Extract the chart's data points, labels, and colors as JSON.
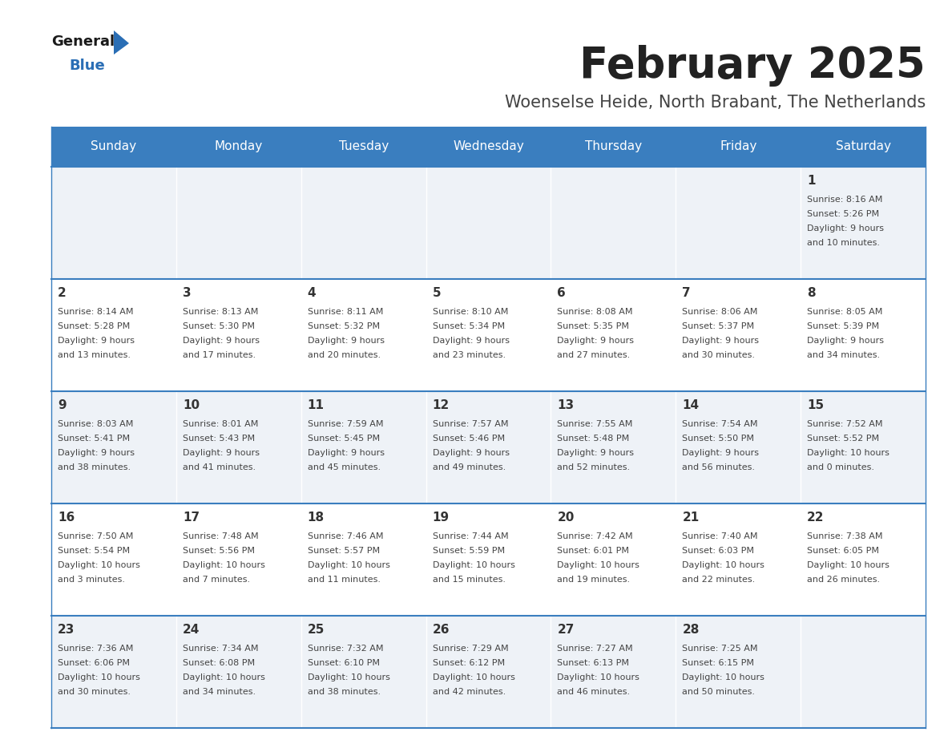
{
  "title": "February 2025",
  "subtitle": "Woenselse Heide, North Brabant, The Netherlands",
  "days_of_week": [
    "Sunday",
    "Monday",
    "Tuesday",
    "Wednesday",
    "Thursday",
    "Friday",
    "Saturday"
  ],
  "header_bg": "#3a7ebf",
  "header_text": "#ffffff",
  "cell_bg_odd": "#eef2f7",
  "cell_bg_even": "#ffffff",
  "border_color": "#3a7ebf",
  "title_color": "#222222",
  "subtitle_color": "#444444",
  "day_number_color": "#333333",
  "cell_text_color": "#444444",
  "logo_general_color": "#1a1a1a",
  "logo_blue_color": "#2a6eb5",
  "calendar": [
    [
      null,
      null,
      null,
      null,
      null,
      null,
      {
        "day": 1,
        "sunrise": "8:16 AM",
        "sunset": "5:26 PM",
        "daylight": "9 hours\nand 10 minutes."
      }
    ],
    [
      {
        "day": 2,
        "sunrise": "8:14 AM",
        "sunset": "5:28 PM",
        "daylight": "9 hours\nand 13 minutes."
      },
      {
        "day": 3,
        "sunrise": "8:13 AM",
        "sunset": "5:30 PM",
        "daylight": "9 hours\nand 17 minutes."
      },
      {
        "day": 4,
        "sunrise": "8:11 AM",
        "sunset": "5:32 PM",
        "daylight": "9 hours\nand 20 minutes."
      },
      {
        "day": 5,
        "sunrise": "8:10 AM",
        "sunset": "5:34 PM",
        "daylight": "9 hours\nand 23 minutes."
      },
      {
        "day": 6,
        "sunrise": "8:08 AM",
        "sunset": "5:35 PM",
        "daylight": "9 hours\nand 27 minutes."
      },
      {
        "day": 7,
        "sunrise": "8:06 AM",
        "sunset": "5:37 PM",
        "daylight": "9 hours\nand 30 minutes."
      },
      {
        "day": 8,
        "sunrise": "8:05 AM",
        "sunset": "5:39 PM",
        "daylight": "9 hours\nand 34 minutes."
      }
    ],
    [
      {
        "day": 9,
        "sunrise": "8:03 AM",
        "sunset": "5:41 PM",
        "daylight": "9 hours\nand 38 minutes."
      },
      {
        "day": 10,
        "sunrise": "8:01 AM",
        "sunset": "5:43 PM",
        "daylight": "9 hours\nand 41 minutes."
      },
      {
        "day": 11,
        "sunrise": "7:59 AM",
        "sunset": "5:45 PM",
        "daylight": "9 hours\nand 45 minutes."
      },
      {
        "day": 12,
        "sunrise": "7:57 AM",
        "sunset": "5:46 PM",
        "daylight": "9 hours\nand 49 minutes."
      },
      {
        "day": 13,
        "sunrise": "7:55 AM",
        "sunset": "5:48 PM",
        "daylight": "9 hours\nand 52 minutes."
      },
      {
        "day": 14,
        "sunrise": "7:54 AM",
        "sunset": "5:50 PM",
        "daylight": "9 hours\nand 56 minutes."
      },
      {
        "day": 15,
        "sunrise": "7:52 AM",
        "sunset": "5:52 PM",
        "daylight": "10 hours\nand 0 minutes."
      }
    ],
    [
      {
        "day": 16,
        "sunrise": "7:50 AM",
        "sunset": "5:54 PM",
        "daylight": "10 hours\nand 3 minutes."
      },
      {
        "day": 17,
        "sunrise": "7:48 AM",
        "sunset": "5:56 PM",
        "daylight": "10 hours\nand 7 minutes."
      },
      {
        "day": 18,
        "sunrise": "7:46 AM",
        "sunset": "5:57 PM",
        "daylight": "10 hours\nand 11 minutes."
      },
      {
        "day": 19,
        "sunrise": "7:44 AM",
        "sunset": "5:59 PM",
        "daylight": "10 hours\nand 15 minutes."
      },
      {
        "day": 20,
        "sunrise": "7:42 AM",
        "sunset": "6:01 PM",
        "daylight": "10 hours\nand 19 minutes."
      },
      {
        "day": 21,
        "sunrise": "7:40 AM",
        "sunset": "6:03 PM",
        "daylight": "10 hours\nand 22 minutes."
      },
      {
        "day": 22,
        "sunrise": "7:38 AM",
        "sunset": "6:05 PM",
        "daylight": "10 hours\nand 26 minutes."
      }
    ],
    [
      {
        "day": 23,
        "sunrise": "7:36 AM",
        "sunset": "6:06 PM",
        "daylight": "10 hours\nand 30 minutes."
      },
      {
        "day": 24,
        "sunrise": "7:34 AM",
        "sunset": "6:08 PM",
        "daylight": "10 hours\nand 34 minutes."
      },
      {
        "day": 25,
        "sunrise": "7:32 AM",
        "sunset": "6:10 PM",
        "daylight": "10 hours\nand 38 minutes."
      },
      {
        "day": 26,
        "sunrise": "7:29 AM",
        "sunset": "6:12 PM",
        "daylight": "10 hours\nand 42 minutes."
      },
      {
        "day": 27,
        "sunrise": "7:27 AM",
        "sunset": "6:13 PM",
        "daylight": "10 hours\nand 46 minutes."
      },
      {
        "day": 28,
        "sunrise": "7:25 AM",
        "sunset": "6:15 PM",
        "daylight": "10 hours\nand 50 minutes."
      },
      null
    ]
  ]
}
